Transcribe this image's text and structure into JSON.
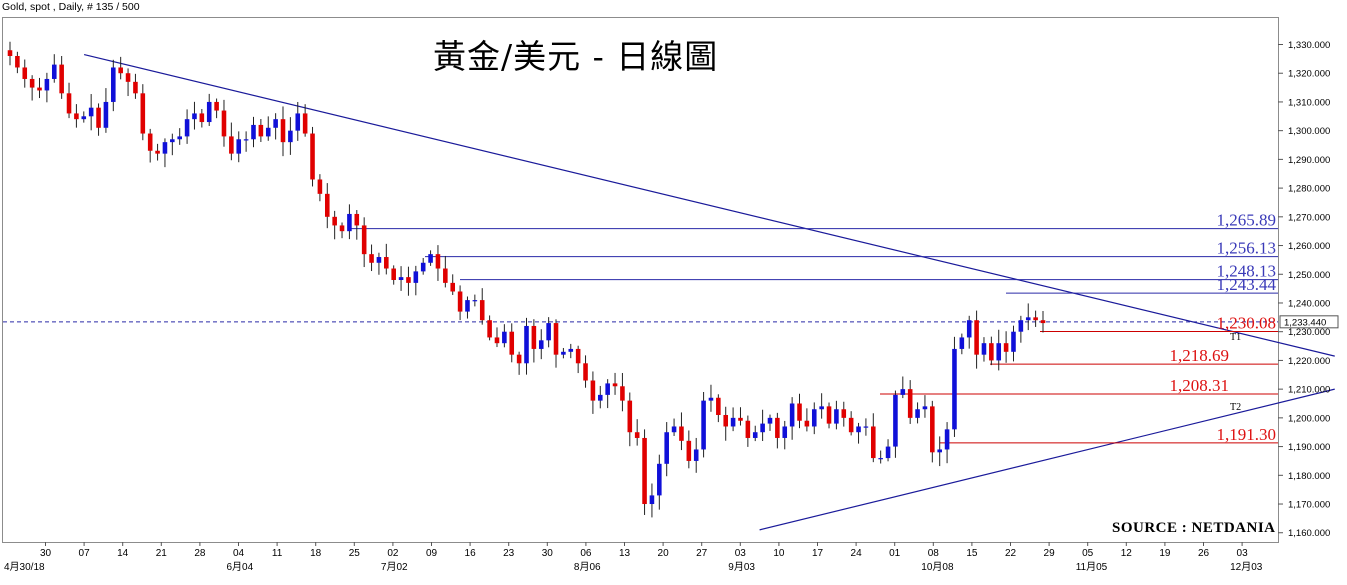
{
  "header": {
    "label": "Gold, spot , Daily, # 135 / 500"
  },
  "title": "黃金/美元 - 日線圖",
  "source": "SOURCE : NETDANIA",
  "chart_data": {
    "type": "candlestick",
    "ylim": [
      1157,
      1337
    ],
    "y_ticks": [
      "1,330.000",
      "1,320.000",
      "1,310.000",
      "1,300.000",
      "1,290.000",
      "1,280.000",
      "1,270.000",
      "1,260.000",
      "1,250.000",
      "1,240.000",
      "1,230.000",
      "1,220.000",
      "1,210.000",
      "1,200.000",
      "1,190.000",
      "1,180.000",
      "1,170.000",
      "1,160.000"
    ],
    "x_ticks": [
      "30",
      "07",
      "14",
      "21",
      "28",
      "04",
      "11",
      "18",
      "25",
      "02",
      "09",
      "16",
      "23",
      "30",
      "06",
      "13",
      "20",
      "27",
      "03",
      "10",
      "17",
      "24",
      "01",
      "08",
      "15",
      "22",
      "29",
      "05",
      "12",
      "19",
      "26",
      "03"
    ],
    "month_labels": [
      "4月30/18",
      "6月04",
      "7月02",
      "8月06",
      "9月03",
      "10月08",
      "11月05",
      "12月03"
    ],
    "current_price": "1,233.440",
    "colors": {
      "up": "#1010d8",
      "down": "#e00000",
      "trendline": "#1a1a9a",
      "resistance": "#2a2aa8",
      "support": "#cc0000"
    },
    "levels": [
      {
        "label": "1,265.89",
        "color": "#3a3ab8"
      },
      {
        "label": "1,256.13",
        "color": "#3a3ab8"
      },
      {
        "label": "1,248.13",
        "color": "#3a3ab8"
      },
      {
        "label": "1,243.44",
        "color": "#3a3ab8"
      },
      {
        "label": "1,230.08",
        "color": "#dd1111"
      },
      {
        "label": "1,218.69",
        "color": "#dd1111"
      },
      {
        "label": "1,208.31",
        "color": "#dd1111"
      },
      {
        "label": "1,191.30",
        "color": "#dd1111"
      }
    ],
    "trendlines": [
      {
        "name": "T1",
        "from": [
          1,
          1326.5
        ],
        "to": [
          33.4,
          1221.5
        ]
      },
      {
        "name": "T2",
        "from": [
          18.5,
          1161
        ],
        "to": [
          33.4,
          1210
        ]
      }
    ],
    "closes": [
      1326,
      1322,
      1318,
      1315,
      1314,
      1318,
      1323,
      1313,
      1306,
      1304,
      1305,
      1308,
      1301,
      1310,
      1322,
      1320,
      1317,
      1313,
      1299,
      1293,
      1292,
      1296,
      1297,
      1298,
      1304,
      1306,
      1303,
      1310,
      1307,
      1298,
      1292,
      1297,
      1297,
      1302,
      1298,
      1301,
      1304,
      1296,
      1300,
      1306,
      1299,
      1283,
      1278,
      1270,
      1267,
      1265,
      1271,
      1267,
      1257,
      1254,
      1256,
      1252,
      1248,
      1249,
      1247,
      1251,
      1254,
      1257,
      1252,
      1247,
      1244,
      1237,
      1241,
      1241,
      1234,
      1228,
      1226,
      1230,
      1222,
      1219,
      1232,
      1224,
      1227,
      1233,
      1222,
      1223,
      1224,
      1219,
      1213,
      1206,
      1208,
      1212,
      1211,
      1206,
      1195,
      1193,
      1170,
      1173,
      1184,
      1195,
      1197,
      1192,
      1185,
      1189,
      1206,
      1207,
      1201,
      1197,
      1200,
      1199,
      1193,
      1195,
      1198,
      1200,
      1193,
      1197,
      1205,
      1199,
      1197,
      1203,
      1204,
      1198,
      1203,
      1200,
      1195,
      1197,
      1197,
      1186,
      1186,
      1190,
      1208,
      1210,
      1200,
      1203,
      1204,
      1188,
      1189,
      1196,
      1224,
      1228,
      1234,
      1222,
      1226,
      1220,
      1226,
      1223,
      1230,
      1234,
      1235,
      1234,
      1233
    ]
  }
}
